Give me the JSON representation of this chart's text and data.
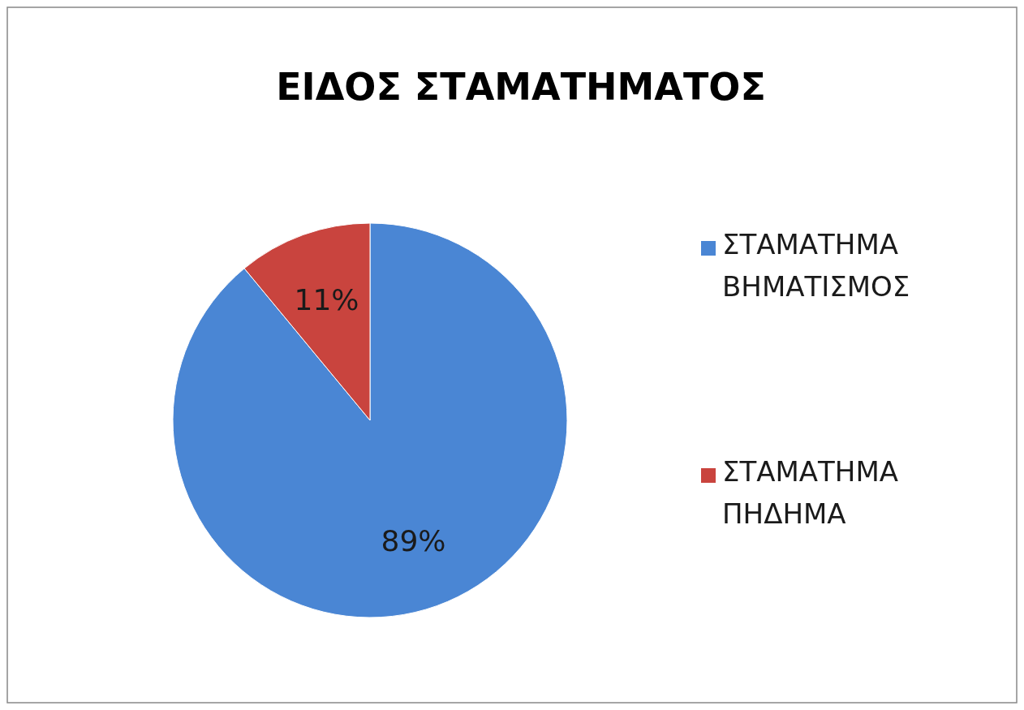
{
  "chart_data": {
    "type": "pie",
    "title": "ΕΙΔΟΣ ΣΤΑΜΑΤΗΜΑΤΟΣ",
    "categories": [
      "ΣΤΑΜΑΤΗΜΑ ΒΗΜΑΤΙΣΜΟΣ",
      "ΣΤΑΜΑΤΗΜΑ ΠΗΔΗΜΑ"
    ],
    "values": [
      89,
      11
    ],
    "colors": [
      "#4a86d4",
      "#c9443e"
    ],
    "value_labels": [
      "89%",
      "11%"
    ],
    "legend": "right"
  }
}
